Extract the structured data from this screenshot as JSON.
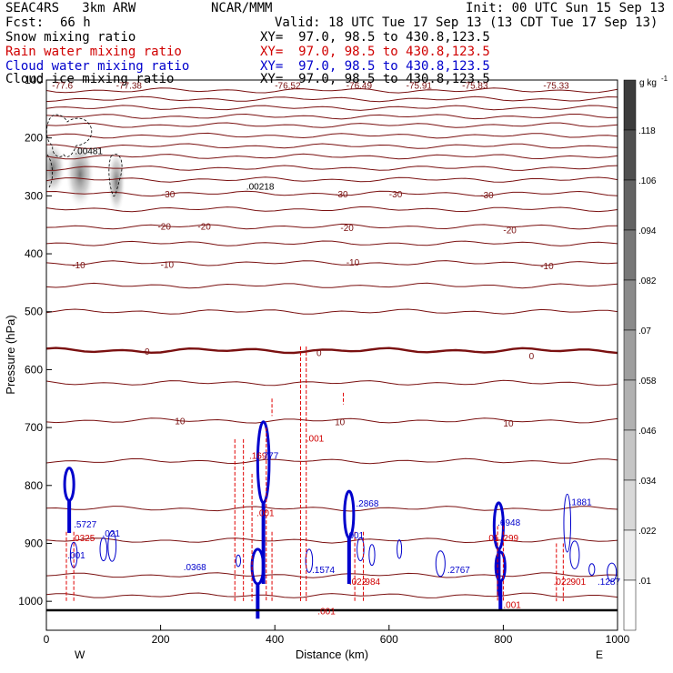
{
  "header": {
    "model": "SEAC4RS   3km ARW",
    "org": "NCAR/MMM",
    "init": "Init: 00 UTC Sun 15 Sep 13",
    "fcst_label": "Fcst:",
    "fcst_value": "66 h",
    "valid": "Valid: 18 UTC Tue 17 Sep 13 (13 CDT Tue 17 Sep 13)",
    "fields": [
      {
        "name": "Snow mixing ratio",
        "xy": "XY=  97.0, 98.5 to 430.8,123.5",
        "color": "#000000"
      },
      {
        "name": "Rain water mixing ratio",
        "xy": "XY=  97.0, 98.5 to 430.8,123.5",
        "color": "#d00000"
      },
      {
        "name": "Cloud water mixing ratio",
        "xy": "XY=  97.0, 98.5 to 430.8,123.5",
        "color": "#0000cc"
      },
      {
        "name": "Cloud ice mixing ratio",
        "xy": "XY=  97.0, 98.5 to 430.8,123.5",
        "color": "#000000"
      }
    ]
  },
  "chart_data": {
    "type": "cross-section",
    "xlabel": "Distance (km)",
    "ylabel": "Pressure (hPa)",
    "xlim": [
      0,
      1000
    ],
    "ylim": [
      1050,
      100
    ],
    "x_ticks": [
      "0",
      "200",
      "400",
      "600",
      "800",
      "1000"
    ],
    "y_ticks": [
      "100",
      "200",
      "300",
      "400",
      "500",
      "600",
      "700",
      "800",
      "900",
      "1000"
    ],
    "end_labels": {
      "left": "W",
      "right": "E"
    },
    "colorbar": {
      "unit": "g kg",
      "unit_exp": "-1",
      "ticks": [
        ".01",
        ".022",
        ".034",
        ".046",
        ".058",
        ".07",
        ".082",
        ".094",
        ".106",
        ".118"
      ]
    },
    "temperature_contours": [
      {
        "p": 118,
        "label": "",
        "bold": false
      },
      {
        "p": 133,
        "label": "",
        "bold": false
      },
      {
        "p": 148,
        "label": "",
        "bold": false
      },
      {
        "p": 163,
        "label": "",
        "bold": false
      },
      {
        "p": 178,
        "label": "",
        "bold": false
      },
      {
        "p": 196,
        "label": "",
        "bold": false
      },
      {
        "p": 214,
        "label": "",
        "bold": false
      },
      {
        "p": 232,
        "label": "",
        "bold": false
      },
      {
        "p": 252,
        "label": "",
        "bold": false
      },
      {
        "p": 272,
        "label": "",
        "bold": false
      },
      {
        "p": 296,
        "label": "-30",
        "bold": false
      },
      {
        "p": 323,
        "label": "",
        "bold": false
      },
      {
        "p": 353,
        "label": "-20",
        "bold": false
      },
      {
        "p": 382,
        "label": "",
        "bold": false
      },
      {
        "p": 416,
        "label": "-10",
        "bold": false
      },
      {
        "p": 455,
        "label": "",
        "bold": false
      },
      {
        "p": 500,
        "label": "",
        "bold": false
      },
      {
        "p": 567,
        "label": "0",
        "bold": true
      },
      {
        "p": 623,
        "label": "",
        "bold": false
      },
      {
        "p": 688,
        "label": "10",
        "bold": false
      },
      {
        "p": 758,
        "label": "",
        "bold": false
      },
      {
        "p": 840,
        "label": "",
        "bold": false
      },
      {
        "p": 895,
        "label": "",
        "bold": false
      },
      {
        "p": 955,
        "label": "",
        "bold": false
      },
      {
        "p": 990,
        "label": "",
        "bold": false
      }
    ],
    "temperature_labels": [
      {
        "x": 10,
        "p": 109,
        "text": "-77.6"
      },
      {
        "x": 122,
        "p": 109,
        "text": "-77.38"
      },
      {
        "x": 400,
        "p": 109,
        "text": "-76.52"
      },
      {
        "x": 525,
        "p": 109,
        "text": "-76.49"
      },
      {
        "x": 630,
        "p": 109,
        "text": "-75.91"
      },
      {
        "x": 728,
        "p": 109,
        "text": "-75.83"
      },
      {
        "x": 870,
        "p": 109,
        "text": "-75.33"
      },
      {
        "x": 202,
        "p": 296,
        "text": "-30"
      },
      {
        "x": 505,
        "p": 296,
        "text": "-30"
      },
      {
        "x": 600,
        "p": 296,
        "text": "-30"
      },
      {
        "x": 760,
        "p": 298,
        "text": "-30"
      },
      {
        "x": 195,
        "p": 352,
        "text": "-20"
      },
      {
        "x": 265,
        "p": 352,
        "text": "-20"
      },
      {
        "x": 515,
        "p": 354,
        "text": "-20"
      },
      {
        "x": 800,
        "p": 358,
        "text": "-20"
      },
      {
        "x": 45,
        "p": 419,
        "text": "-10"
      },
      {
        "x": 200,
        "p": 418,
        "text": "-10"
      },
      {
        "x": 525,
        "p": 414,
        "text": "-10"
      },
      {
        "x": 865,
        "p": 420,
        "text": "-10"
      },
      {
        "x": 172,
        "p": 568,
        "text": "0"
      },
      {
        "x": 473,
        "p": 570,
        "text": "0"
      },
      {
        "x": 845,
        "p": 576,
        "text": "0"
      },
      {
        "x": 225,
        "p": 688,
        "text": "10"
      },
      {
        "x": 505,
        "p": 690,
        "text": "10"
      },
      {
        "x": 800,
        "p": 692,
        "text": "10"
      }
    ],
    "maxima_labels": [
      {
        "x": 50,
        "p": 222,
        "text": ".00481",
        "color": "#000000"
      },
      {
        "x": 350,
        "p": 283,
        "text": ".00218",
        "color": "#000000"
      },
      {
        "x": 355,
        "p": 748,
        "text": ".169",
        "color": "#d00000"
      },
      {
        "x": 380,
        "p": 748,
        "text": "777",
        "color": "#0000cc"
      },
      {
        "x": 48,
        "p": 866,
        "text": ".5727",
        "color": "#0000cc"
      },
      {
        "x": 542,
        "p": 830,
        "text": ".2868",
        "color": "#0000cc"
      },
      {
        "x": 790,
        "p": 863,
        "text": ".6948",
        "color": "#0000cc"
      },
      {
        "x": 915,
        "p": 828,
        "text": ".1881",
        "color": "#0000cc"
      },
      {
        "x": 45,
        "p": 890,
        "text": ".0325",
        "color": "#d00000"
      },
      {
        "x": 98,
        "p": 882,
        "text": ".021",
        "color": "#0000cc"
      },
      {
        "x": 240,
        "p": 940,
        "text": ".0368",
        "color": "#0000cc"
      },
      {
        "x": 465,
        "p": 945,
        "text": ".1574",
        "color": "#0000cc"
      },
      {
        "x": 530,
        "p": 965,
        "text": ".022",
        "color": "#d00000"
      },
      {
        "x": 558,
        "p": 965,
        "text": "984",
        "color": "#d00000"
      },
      {
        "x": 702,
        "p": 945,
        "text": ".2767",
        "color": "#0000cc"
      },
      {
        "x": 770,
        "p": 890,
        "text": ".01",
        "color": "#d00000"
      },
      {
        "x": 800,
        "p": 890,
        "text": "299",
        "color": "#d00000"
      },
      {
        "x": 888,
        "p": 965,
        "text": ".022",
        "color": "#d00000"
      },
      {
        "x": 918,
        "p": 965,
        "text": "901",
        "color": "#d00000"
      },
      {
        "x": 965,
        "p": 965,
        "text": ".1287",
        "color": "#0000cc"
      },
      {
        "x": 368,
        "p": 847,
        "text": ".001",
        "color": "#d00000"
      },
      {
        "x": 455,
        "p": 718,
        "text": ".001",
        "color": "#d00000"
      },
      {
        "x": 475,
        "p": 1016,
        "text": ".001",
        "color": "#d00000"
      },
      {
        "x": 800,
        "p": 1005,
        "text": ".001",
        "color": "#d00000"
      },
      {
        "x": 37,
        "p": 920,
        "text": ".001",
        "color": "#0000cc"
      },
      {
        "x": 525,
        "p": 885,
        "text": ".001",
        "color": "#0000cc"
      }
    ]
  }
}
